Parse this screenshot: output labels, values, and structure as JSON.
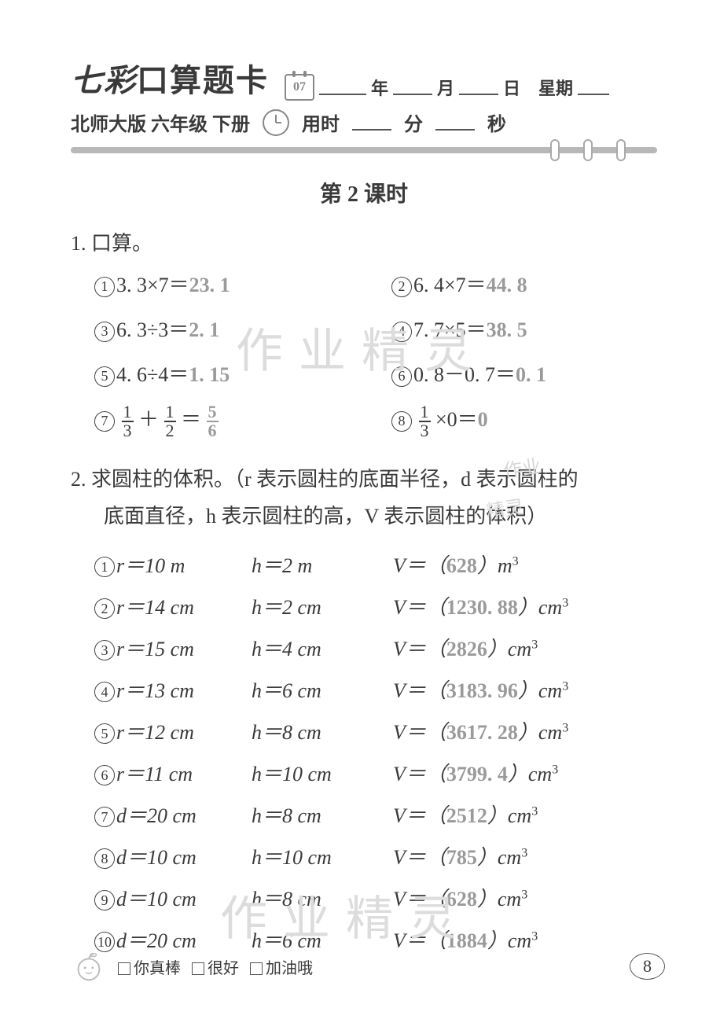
{
  "header": {
    "title_prefix": "七彩",
    "title_suffix": "口算题卡",
    "calendar_day": "07",
    "date_labels": {
      "year": "年",
      "month": "月",
      "day": "日",
      "weekday": "星期"
    },
    "subtitle": "北师大版 六年级 下册",
    "timer_label": "用时",
    "minute": "分",
    "second": "秒"
  },
  "lesson_title": "第 2 课时",
  "q1": {
    "label": "1. 口算。",
    "items": [
      {
        "n": "1",
        "expr": "3. 3×7＝",
        "ans": "23. 1"
      },
      {
        "n": "2",
        "expr": "6. 4×7＝",
        "ans": "44. 8"
      },
      {
        "n": "3",
        "expr": "6. 3÷3＝",
        "ans": "2. 1"
      },
      {
        "n": "4",
        "expr": "7. 7×5＝",
        "ans": "38. 5"
      },
      {
        "n": "5",
        "expr": "4. 6÷4＝",
        "ans": "1. 15"
      },
      {
        "n": "6",
        "expr": "0. 8－0. 7＝",
        "ans": "0. 1"
      }
    ],
    "item7": {
      "n": "7",
      "a_num": "1",
      "a_den": "3",
      "op": "＋",
      "b_num": "1",
      "b_den": "2",
      "eq": "＝",
      "r_num": "5",
      "r_den": "6"
    },
    "item8": {
      "n": "8",
      "a_num": "1",
      "a_den": "3",
      "tail": "×0＝",
      "ans": "0"
    }
  },
  "q2": {
    "label_line1": "2. 求圆柱的体积。（r 表示圆柱的底面半径，d 表示圆柱的",
    "label_line2": "底面直径，h 表示圆柱的高，V 表示圆柱的体积）",
    "rows": [
      {
        "n": "1",
        "p": "r＝10 m",
        "h": "h＝2 m",
        "v_pre": "V＝（",
        "ans": "628",
        "v_post": "）m³"
      },
      {
        "n": "2",
        "p": "r＝14 cm",
        "h": "h＝2 cm",
        "v_pre": "V＝（",
        "ans": "1230. 88",
        "v_post": "）cm³"
      },
      {
        "n": "3",
        "p": "r＝15 cm",
        "h": "h＝4 cm",
        "v_pre": "V＝（",
        "ans": "2826",
        "v_post": "）cm³"
      },
      {
        "n": "4",
        "p": "r＝13 cm",
        "h": "h＝6 cm",
        "v_pre": "V＝（",
        "ans": "3183. 96",
        "v_post": "）cm³"
      },
      {
        "n": "5",
        "p": "r＝12 cm",
        "h": "h＝8 cm",
        "v_pre": "V＝（",
        "ans": "3617. 28",
        "v_post": "）cm³"
      },
      {
        "n": "6",
        "p": "r＝11 cm",
        "h": "h＝10 cm",
        "v_pre": "V＝（",
        "ans": "3799. 4",
        "v_post": "）cm³"
      },
      {
        "n": "7",
        "p": "d＝20 cm",
        "h": "h＝8 cm",
        "v_pre": "V＝（",
        "ans": "2512",
        "v_post": "）cm³"
      },
      {
        "n": "8",
        "p": "d＝10 cm",
        "h": "h＝10 cm",
        "v_pre": "V＝（",
        "ans": "785",
        "v_post": "）cm³"
      },
      {
        "n": "9",
        "p": "d＝10 cm",
        "h": "h＝8 cm",
        "v_pre": "V＝（",
        "ans": "628",
        "v_post": "）cm³"
      },
      {
        "n": "10",
        "p": "d＝20 cm",
        "h": "h＝6 cm",
        "v_pre": "V＝（",
        "ans": "1884",
        "v_post": "）cm³"
      }
    ]
  },
  "footer": {
    "opts": [
      "你真棒",
      "很好",
      "加油哦"
    ],
    "page": "8"
  },
  "watermarks": {
    "main": "作业精灵",
    "small1": "作业",
    "small2": "精灵"
  },
  "colors": {
    "text": "#3a3a3a",
    "answer": "#9a9a9a",
    "bar": "#b8b8b8",
    "watermark": "#dcdcdc"
  }
}
